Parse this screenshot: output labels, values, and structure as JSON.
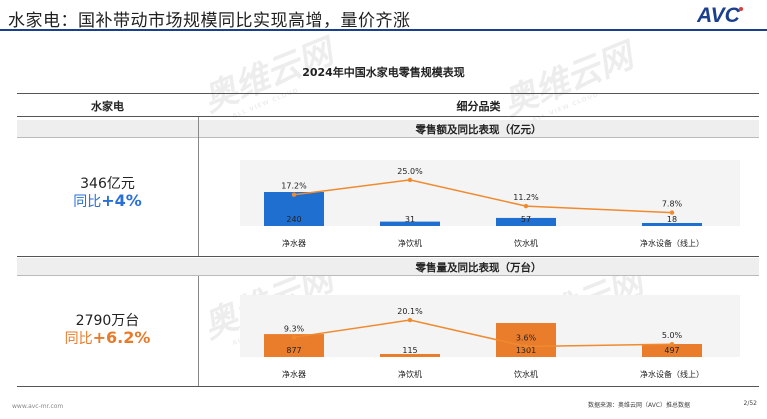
{
  "header": {
    "title": "水家电：国补带动市场规模同比实现高增，量价齐涨",
    "logo": "AVC"
  },
  "table": {
    "title": "2024年中国水家电零售规模表现",
    "col_left": "水家电",
    "col_right": "细分品类"
  },
  "sections": [
    {
      "bar_label": "零售额及同比表现（亿元）",
      "total": "346亿元",
      "growth_prefix": "同比",
      "growth_value": "+4%",
      "color": "#2a6fd6"
    },
    {
      "bar_label": "零售量及同比表现（万台）",
      "total": "2790万台",
      "growth_prefix": "同比",
      "growth_value": "+6.2%",
      "color": "#e87a2a"
    }
  ],
  "chart_data": [
    {
      "type": "bar",
      "categories": [
        "净水器",
        "净饮机",
        "饮水机",
        "净水设备（线上）"
      ],
      "values": [
        240,
        31,
        57,
        18
      ],
      "line_values": [
        17.2,
        25.0,
        11.2,
        7.8
      ],
      "line_labels": [
        "17.2%",
        "25.0%",
        "11.2%",
        "7.8%"
      ],
      "bar_color": "#1f6fd0",
      "line_color": "#f08a2e"
    },
    {
      "type": "bar",
      "categories": [
        "净水器",
        "净饮机",
        "饮水机",
        "净水设备（线上）"
      ],
      "values": [
        877,
        115,
        1301,
        497
      ],
      "line_values": [
        9.3,
        20.1,
        3.6,
        5.0
      ],
      "line_labels": [
        "9.3%",
        "20.1%",
        "3.6%",
        "5.0%"
      ],
      "bar_color": "#ea7d2c",
      "line_color": "#f08a2e"
    }
  ],
  "watermark": {
    "main": "奥维云网",
    "sub": "ALL VIEW CLOUD"
  },
  "footer": {
    "left": "www.avc-mr.com",
    "source": "数据来源：奥维云网（AVC）推总数据",
    "page": "2/52"
  }
}
